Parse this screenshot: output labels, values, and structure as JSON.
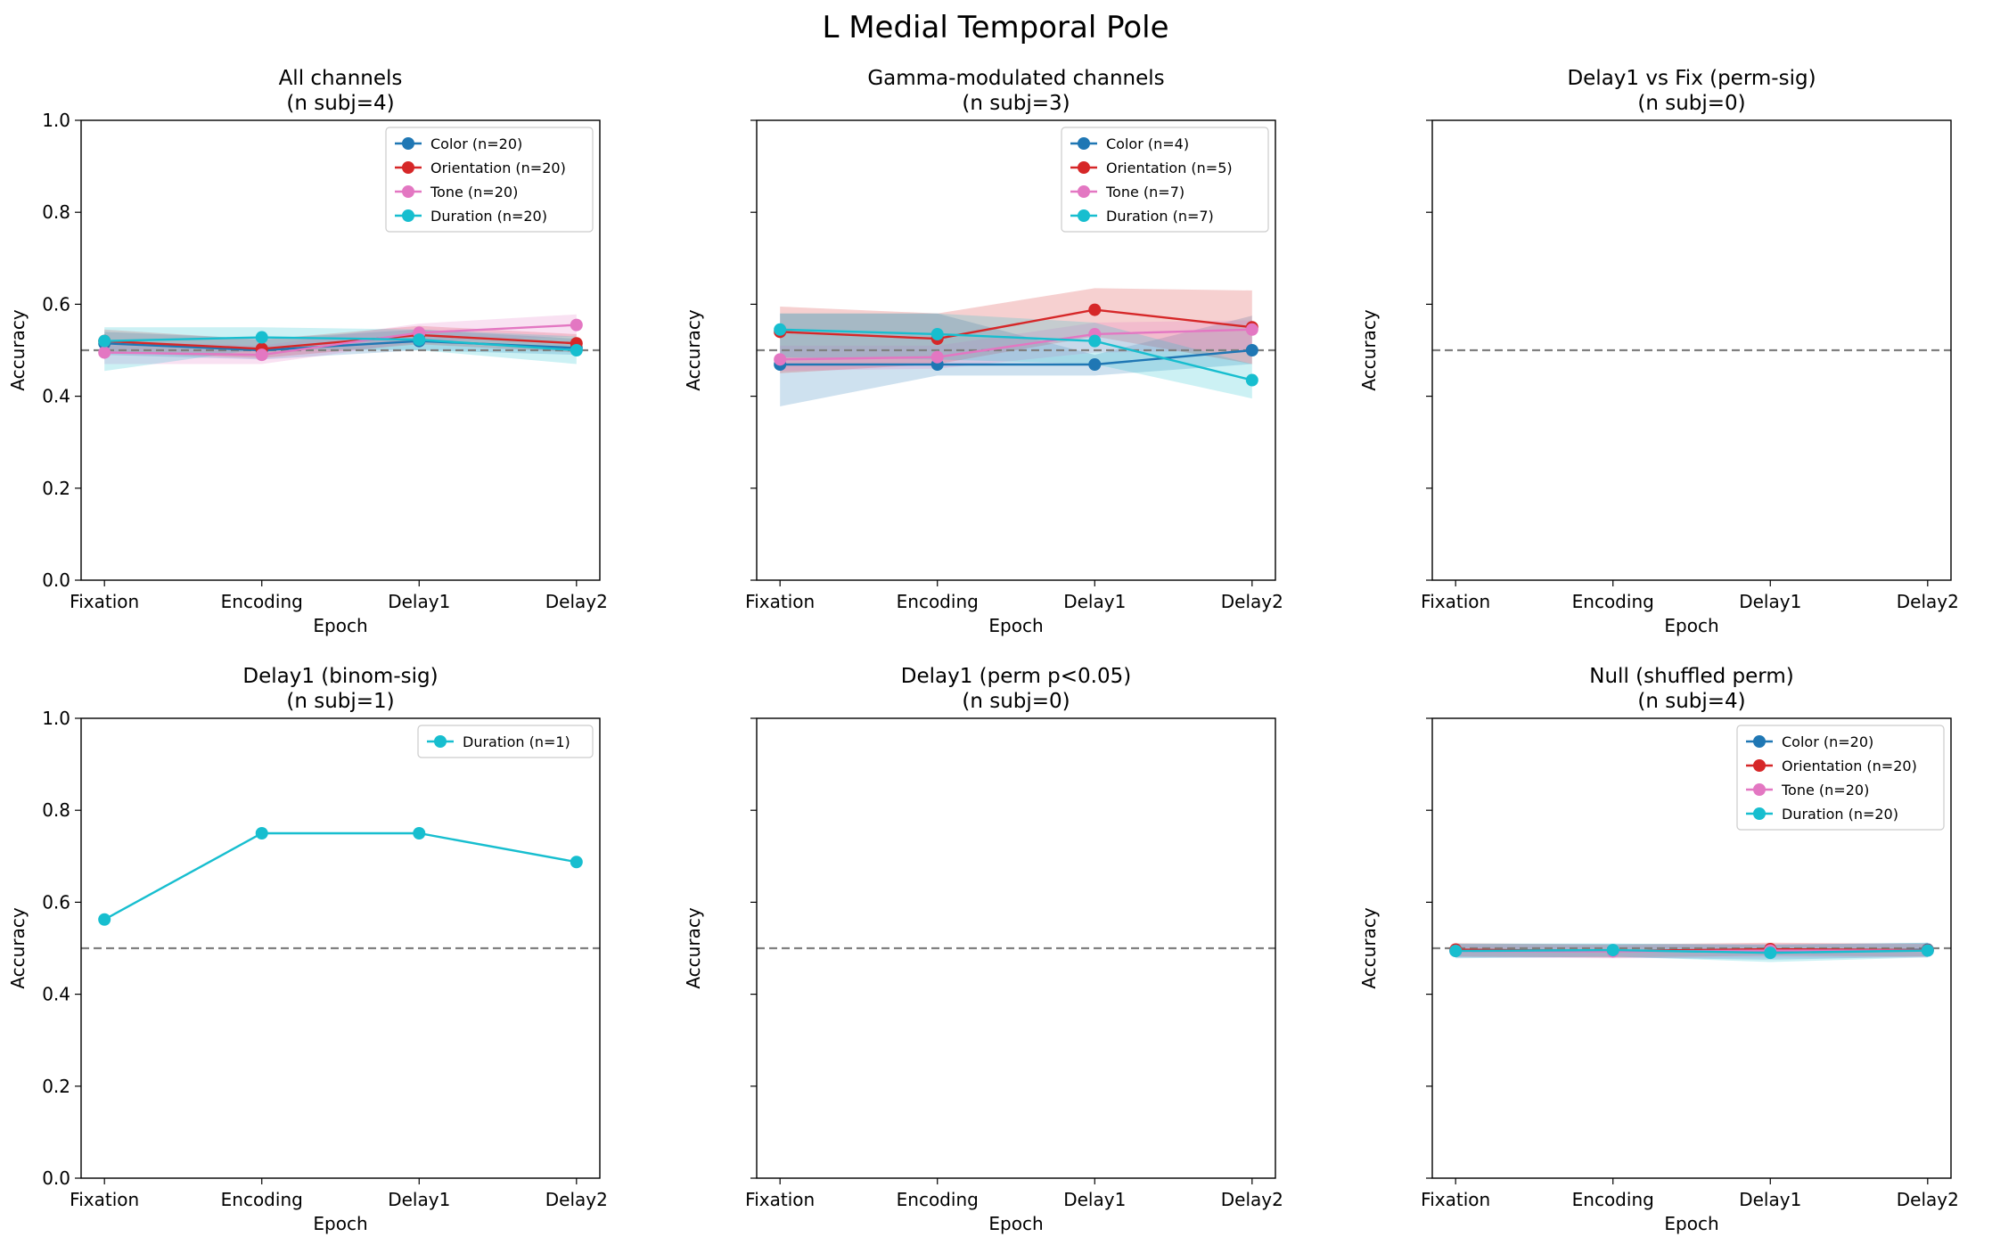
{
  "figure": {
    "title": "L Medial Temporal Pole"
  },
  "colors": {
    "Color": "#1f77b4",
    "Orientation": "#d62728",
    "Tone": "#e377c2",
    "Duration": "#17becf",
    "chance_line": "#808080"
  },
  "chart_data": [
    {
      "type": "line",
      "title": "All channels",
      "subtitle": "(n subj=4)",
      "categories": [
        "Fixation",
        "Encoding",
        "Delay1",
        "Delay2"
      ],
      "xlabel": "Epoch",
      "ylabel": "Accuracy",
      "ylim": [
        0,
        1
      ],
      "yticks": [
        "0.0",
        "0.2",
        "0.4",
        "0.6",
        "0.8",
        "1.0"
      ],
      "show_yticklabels": true,
      "chance": 0.5,
      "legend": "top-right",
      "series": [
        {
          "name": "Color",
          "legend_label": "Color (n=20)",
          "values": [
            0.515,
            0.5,
            0.52,
            0.505
          ],
          "lower": [
            0.49,
            0.48,
            0.5,
            0.49
          ],
          "upper": [
            0.54,
            0.525,
            0.545,
            0.525
          ]
        },
        {
          "name": "Orientation",
          "legend_label": "Orientation (n=20)",
          "values": [
            0.52,
            0.503,
            0.533,
            0.515
          ],
          "lower": [
            0.495,
            0.483,
            0.513,
            0.495
          ],
          "upper": [
            0.545,
            0.523,
            0.553,
            0.535
          ]
        },
        {
          "name": "Tone",
          "legend_label": "Tone (n=20)",
          "values": [
            0.495,
            0.49,
            0.538,
            0.555
          ],
          "lower": [
            0.47,
            0.47,
            0.518,
            0.53
          ],
          "upper": [
            0.52,
            0.51,
            0.558,
            0.578
          ]
        },
        {
          "name": "Duration",
          "legend_label": "Duration (n=20)",
          "values": [
            0.52,
            0.528,
            0.523,
            0.5
          ],
          "lower": [
            0.455,
            0.503,
            0.5,
            0.47
          ],
          "upper": [
            0.55,
            0.55,
            0.545,
            0.53
          ]
        }
      ]
    },
    {
      "type": "line",
      "title": "Gamma-modulated channels",
      "subtitle": "(n subj=3)",
      "categories": [
        "Fixation",
        "Encoding",
        "Delay1",
        "Delay2"
      ],
      "xlabel": "Epoch",
      "ylabel": "Accuracy",
      "ylim": [
        0,
        1
      ],
      "yticks": [
        "0.0",
        "0.2",
        "0.4",
        "0.6",
        "0.8",
        "1.0"
      ],
      "show_yticklabels": false,
      "chance": 0.5,
      "legend": "top-right",
      "series": [
        {
          "name": "Color",
          "legend_label": "Color (n=4)",
          "values": [
            0.469,
            0.469,
            0.469,
            0.5
          ],
          "lower": [
            0.378,
            0.445,
            0.445,
            0.47
          ],
          "upper": [
            0.58,
            0.58,
            0.49,
            0.575
          ]
        },
        {
          "name": "Orientation",
          "legend_label": "Orientation (n=5)",
          "values": [
            0.54,
            0.525,
            0.588,
            0.55
          ],
          "lower": [
            0.45,
            0.47,
            0.53,
            0.47
          ],
          "upper": [
            0.595,
            0.58,
            0.635,
            0.63
          ]
        },
        {
          "name": "Tone",
          "legend_label": "Tone (n=7)",
          "values": [
            0.48,
            0.485,
            0.535,
            0.545
          ],
          "lower": [
            0.455,
            0.46,
            0.495,
            0.5
          ],
          "upper": [
            0.51,
            0.51,
            0.56,
            0.565
          ]
        },
        {
          "name": "Duration",
          "legend_label": "Duration (n=7)",
          "values": [
            0.545,
            0.535,
            0.52,
            0.435
          ],
          "lower": [
            0.485,
            0.48,
            0.47,
            0.395
          ],
          "upper": [
            0.58,
            0.58,
            0.56,
            0.47
          ]
        }
      ]
    },
    {
      "type": "line",
      "title": "Delay1 vs Fix (perm-sig)",
      "subtitle": "(n subj=0)",
      "categories": [
        "Fixation",
        "Encoding",
        "Delay1",
        "Delay2"
      ],
      "xlabel": "Epoch",
      "ylabel": "Accuracy",
      "ylim": [
        0,
        1
      ],
      "yticks": [
        "0.0",
        "0.2",
        "0.4",
        "0.6",
        "0.8",
        "1.0"
      ],
      "show_yticklabels": false,
      "chance": 0.5,
      "legend": "none",
      "series": []
    },
    {
      "type": "line",
      "title": "Delay1 (binom-sig)",
      "subtitle": "(n subj=1)",
      "categories": [
        "Fixation",
        "Encoding",
        "Delay1",
        "Delay2"
      ],
      "xlabel": "Epoch",
      "ylabel": "Accuracy",
      "ylim": [
        0,
        1
      ],
      "yticks": [
        "0.0",
        "0.2",
        "0.4",
        "0.6",
        "0.8",
        "1.0"
      ],
      "show_yticklabels": true,
      "chance": 0.5,
      "legend": "top-right",
      "series": [
        {
          "name": "Duration",
          "legend_label": "Duration (n=1)",
          "values": [
            0.5625,
            0.75,
            0.75,
            0.6875
          ]
        }
      ]
    },
    {
      "type": "line",
      "title": "Delay1 (perm p<0.05)",
      "subtitle": "(n subj=0)",
      "categories": [
        "Fixation",
        "Encoding",
        "Delay1",
        "Delay2"
      ],
      "xlabel": "Epoch",
      "ylabel": "Accuracy",
      "ylim": [
        0,
        1
      ],
      "yticks": [
        "0.0",
        "0.2",
        "0.4",
        "0.6",
        "0.8",
        "1.0"
      ],
      "show_yticklabels": false,
      "chance": 0.5,
      "legend": "none",
      "series": []
    },
    {
      "type": "line",
      "title": "Null (shuffled perm)",
      "subtitle": "(n subj=4)",
      "categories": [
        "Fixation",
        "Encoding",
        "Delay1",
        "Delay2"
      ],
      "xlabel": "Epoch",
      "ylabel": "Accuracy",
      "ylim": [
        0,
        1
      ],
      "yticks": [
        "0.0",
        "0.2",
        "0.4",
        "0.6",
        "0.8",
        "1.0"
      ],
      "show_yticklabels": false,
      "chance": 0.5,
      "legend": "top-right",
      "series": [
        {
          "name": "Color",
          "legend_label": "Color (n=20)",
          "values": [
            0.495,
            0.495,
            0.492,
            0.497
          ],
          "lower": [
            0.48,
            0.48,
            0.475,
            0.482
          ],
          "upper": [
            0.51,
            0.51,
            0.508,
            0.512
          ]
        },
        {
          "name": "Orientation",
          "legend_label": "Orientation (n=20)",
          "values": [
            0.497,
            0.494,
            0.498,
            0.496
          ],
          "lower": [
            0.482,
            0.48,
            0.484,
            0.482
          ],
          "upper": [
            0.511,
            0.508,
            0.512,
            0.51
          ]
        },
        {
          "name": "Tone",
          "legend_label": "Tone (n=20)",
          "values": [
            0.494,
            0.493,
            0.495,
            0.495
          ],
          "lower": [
            0.48,
            0.478,
            0.48,
            0.48
          ],
          "upper": [
            0.508,
            0.506,
            0.51,
            0.51
          ]
        },
        {
          "name": "Duration",
          "legend_label": "Duration (n=20)",
          "values": [
            0.494,
            0.496,
            0.49,
            0.495
          ],
          "lower": [
            0.478,
            0.482,
            0.47,
            0.48
          ],
          "upper": [
            0.51,
            0.51,
            0.508,
            0.512
          ]
        }
      ]
    }
  ]
}
